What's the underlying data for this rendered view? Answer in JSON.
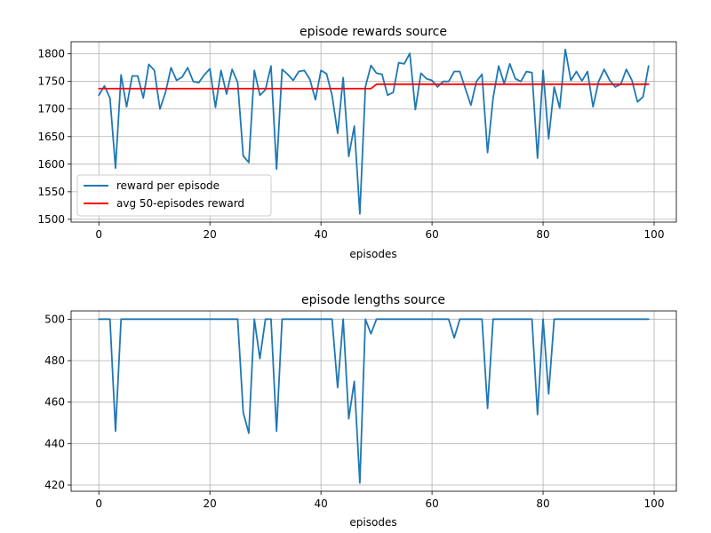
{
  "chart_data": [
    {
      "type": "line",
      "title": "episode rewards source",
      "xlabel": "episodes",
      "ylabel": "",
      "xlim": [
        -5,
        104
      ],
      "ylim": [
        1495,
        1822
      ],
      "xticks": [
        0,
        20,
        40,
        60,
        80,
        100
      ],
      "yticks": [
        1500,
        1550,
        1600,
        1650,
        1700,
        1750,
        1800
      ],
      "grid": true,
      "legend_position": "lower-left",
      "series": [
        {
          "name": "reward per episode",
          "color": "#1f77b4",
          "x": [
            0,
            1,
            2,
            3,
            4,
            5,
            6,
            7,
            8,
            9,
            10,
            11,
            12,
            13,
            14,
            15,
            16,
            17,
            18,
            19,
            20,
            21,
            22,
            23,
            24,
            25,
            26,
            27,
            28,
            29,
            30,
            31,
            32,
            33,
            34,
            35,
            36,
            37,
            38,
            39,
            40,
            41,
            42,
            43,
            44,
            45,
            46,
            47,
            48,
            49,
            50,
            51,
            52,
            53,
            54,
            55,
            56,
            57,
            58,
            59,
            60,
            61,
            62,
            63,
            64,
            65,
            66,
            67,
            68,
            69,
            70,
            71,
            72,
            73,
            74,
            75,
            76,
            77,
            78,
            79,
            80,
            81,
            82,
            83,
            84,
            85,
            86,
            87,
            88,
            89,
            90,
            91,
            92,
            93,
            94,
            95,
            96,
            97,
            98,
            99
          ],
          "values": [
            1725,
            1742,
            1720,
            1593,
            1762,
            1704,
            1760,
            1760,
            1720,
            1781,
            1770,
            1700,
            1730,
            1775,
            1752,
            1758,
            1775,
            1750,
            1748,
            1762,
            1773,
            1703,
            1770,
            1727,
            1772,
            1748,
            1615,
            1603,
            1770,
            1725,
            1735,
            1778,
            1591,
            1772,
            1763,
            1752,
            1768,
            1770,
            1754,
            1717,
            1770,
            1764,
            1725,
            1656,
            1757,
            1614,
            1669,
            1510,
            1740,
            1779,
            1765,
            1763,
            1725,
            1730,
            1784,
            1782,
            1801,
            1699,
            1765,
            1755,
            1752,
            1740,
            1750,
            1750,
            1768,
            1768,
            1737,
            1707,
            1750,
            1763,
            1621,
            1720,
            1778,
            1746,
            1782,
            1755,
            1750,
            1768,
            1766,
            1611,
            1770,
            1646,
            1740,
            1702,
            1808,
            1752,
            1768,
            1751,
            1768,
            1704,
            1750,
            1772,
            1752,
            1740,
            1745,
            1772,
            1752,
            1713,
            1722,
            1778
          ]
        },
        {
          "name": "avg 50-episodes reward",
          "color": "#ff0000",
          "x": [
            0,
            1,
            2,
            3,
            4,
            5,
            6,
            7,
            8,
            9,
            10,
            11,
            12,
            13,
            14,
            15,
            16,
            17,
            18,
            19,
            20,
            21,
            22,
            23,
            24,
            25,
            26,
            27,
            28,
            29,
            30,
            31,
            32,
            33,
            34,
            35,
            36,
            37,
            38,
            39,
            40,
            41,
            42,
            43,
            44,
            45,
            46,
            47,
            48,
            49,
            50,
            51,
            52,
            53,
            54,
            55,
            56,
            57,
            58,
            59,
            60,
            61,
            62,
            63,
            64,
            65,
            66,
            67,
            68,
            69,
            70,
            71,
            72,
            73,
            74,
            75,
            76,
            77,
            78,
            79,
            80,
            81,
            82,
            83,
            84,
            85,
            86,
            87,
            88,
            89,
            90,
            91,
            92,
            93,
            94,
            95,
            96,
            97,
            98,
            99
          ],
          "values": [
            1737,
            1737,
            1737,
            1737,
            1737,
            1737,
            1737,
            1737,
            1737,
            1737,
            1737,
            1737,
            1737,
            1737,
            1737,
            1737,
            1737,
            1737,
            1737,
            1737,
            1737,
            1737,
            1737,
            1737,
            1737,
            1737,
            1737,
            1737,
            1737,
            1737,
            1737,
            1737,
            1737,
            1737,
            1737,
            1737,
            1737,
            1737,
            1737,
            1737,
            1737,
            1737,
            1737,
            1737,
            1737,
            1737,
            1737,
            1737,
            1737,
            1737,
            1745,
            1745,
            1745,
            1745,
            1745,
            1745,
            1745,
            1745,
            1745,
            1745,
            1745,
            1745,
            1745,
            1745,
            1745,
            1745,
            1745,
            1745,
            1745,
            1745,
            1745,
            1745,
            1745,
            1745,
            1745,
            1745,
            1745,
            1745,
            1745,
            1745,
            1745,
            1745,
            1745,
            1745,
            1745,
            1745,
            1745,
            1745,
            1745,
            1745,
            1745,
            1745,
            1745,
            1745,
            1745,
            1745,
            1745,
            1745,
            1745,
            1745
          ]
        }
      ]
    },
    {
      "type": "line",
      "title": "episode lengths source",
      "xlabel": "episodes",
      "ylabel": "",
      "xlim": [
        -5,
        104
      ],
      "ylim": [
        417,
        504
      ],
      "xticks": [
        0,
        20,
        40,
        60,
        80,
        100
      ],
      "yticks": [
        420,
        440,
        460,
        480,
        500
      ],
      "grid": true,
      "series": [
        {
          "color": "#1f77b4",
          "x": [
            0,
            1,
            2,
            3,
            4,
            5,
            6,
            7,
            8,
            9,
            10,
            11,
            12,
            13,
            14,
            15,
            16,
            17,
            18,
            19,
            20,
            21,
            22,
            23,
            24,
            25,
            26,
            27,
            28,
            29,
            30,
            31,
            32,
            33,
            34,
            35,
            36,
            37,
            38,
            39,
            40,
            41,
            42,
            43,
            44,
            45,
            46,
            47,
            48,
            49,
            50,
            51,
            52,
            53,
            54,
            55,
            56,
            57,
            58,
            59,
            60,
            61,
            62,
            63,
            64,
            65,
            66,
            67,
            68,
            69,
            70,
            71,
            72,
            73,
            74,
            75,
            76,
            77,
            78,
            79,
            80,
            81,
            82,
            83,
            84,
            85,
            86,
            87,
            88,
            89,
            90,
            91,
            92,
            93,
            94,
            95,
            96,
            97,
            98,
            99
          ],
          "values": [
            500,
            500,
            500,
            446,
            500,
            500,
            500,
            500,
            500,
            500,
            500,
            500,
            500,
            500,
            500,
            500,
            500,
            500,
            500,
            500,
            500,
            500,
            500,
            500,
            500,
            500,
            455,
            445,
            500,
            481,
            500,
            500,
            446,
            500,
            500,
            500,
            500,
            500,
            500,
            500,
            500,
            500,
            500,
            467,
            500,
            452,
            470,
            421,
            500,
            493,
            500,
            500,
            500,
            500,
            500,
            500,
            500,
            500,
            500,
            500,
            500,
            500,
            500,
            500,
            491,
            500,
            500,
            500,
            500,
            500,
            457,
            500,
            500,
            500,
            500,
            500,
            500,
            500,
            500,
            454,
            500,
            464,
            500,
            500,
            500,
            500,
            500,
            500,
            500,
            500,
            500,
            500,
            500,
            500,
            500,
            500,
            500,
            500,
            500,
            500
          ]
        }
      ]
    }
  ]
}
